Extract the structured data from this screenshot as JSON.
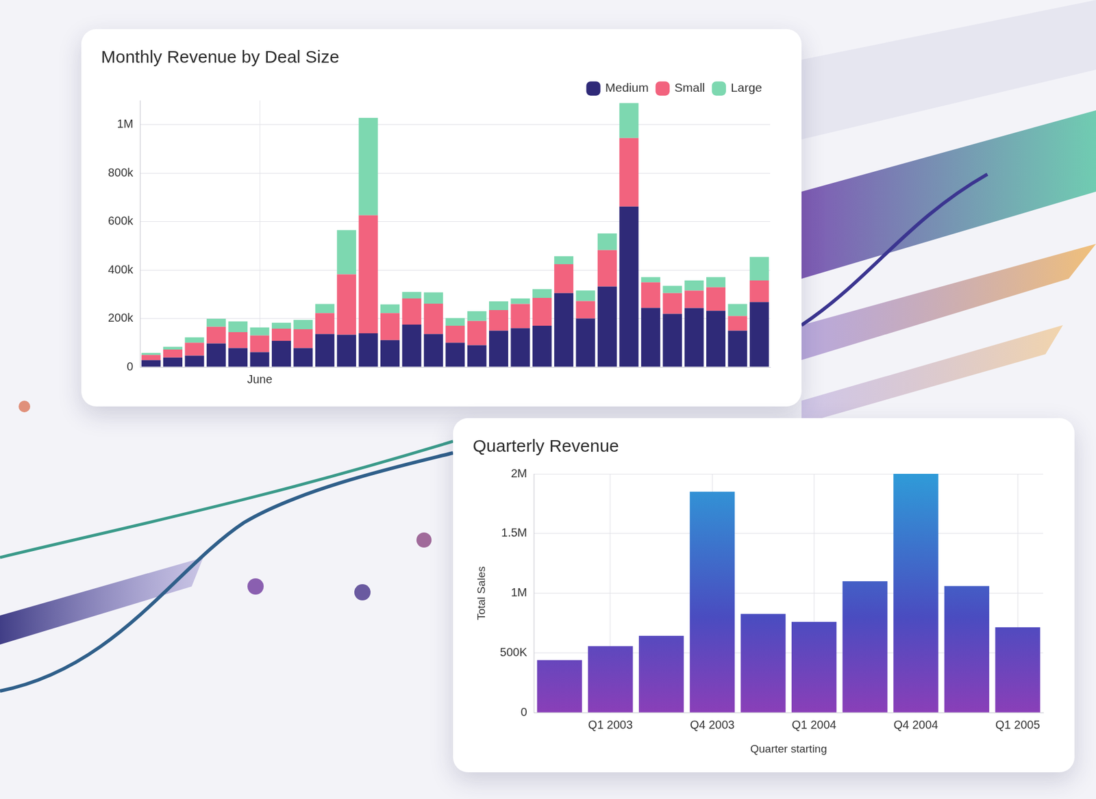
{
  "chart_data": [
    {
      "type": "bar",
      "title": "Monthly Revenue by Deal Size",
      "stacked": true,
      "legend": "top right",
      "grid": true,
      "categories": [
        null,
        null,
        null,
        null,
        null,
        "June",
        null,
        null,
        null,
        null,
        null,
        null,
        null,
        null,
        null,
        null,
        null,
        null,
        null,
        null,
        null,
        null,
        null,
        null,
        null,
        null,
        null,
        null,
        null
      ],
      "series": [
        {
          "name": "Medium",
          "color": "#2f2a78",
          "values": [
            28000,
            39000,
            47000,
            97000,
            78000,
            61000,
            108000,
            78000,
            136000,
            133000,
            139000,
            111000,
            175000,
            136000,
            100000,
            90000,
            150000,
            160000,
            170000,
            305000,
            200000,
            332000,
            662000,
            244000,
            219000,
            243000,
            232000,
            150000,
            268000
          ]
        },
        {
          "name": "Small",
          "color": "#f2637e",
          "values": [
            22000,
            33000,
            53000,
            69000,
            66000,
            69000,
            50000,
            78000,
            86000,
            249000,
            487000,
            111000,
            108000,
            125000,
            70000,
            100000,
            85000,
            100000,
            115000,
            119000,
            72000,
            150000,
            283000,
            105000,
            86000,
            72000,
            97000,
            60000,
            89000
          ]
        },
        {
          "name": "Large",
          "color": "#7dd8b0",
          "values": [
            8000,
            11000,
            22000,
            33000,
            44000,
            33000,
            25000,
            38000,
            38000,
            183000,
            402000,
            36000,
            27000,
            47000,
            32000,
            40000,
            36000,
            23000,
            36000,
            33000,
            44000,
            69000,
            144000,
            22000,
            30000,
            42000,
            42000,
            50000,
            97000
          ]
        }
      ],
      "ylim": [
        0,
        1100000
      ],
      "yticks": [
        0,
        {
          "value": 200000,
          "label": "200k"
        },
        {
          "value": 400000,
          "label": "400k"
        },
        {
          "value": 600000,
          "label": "600k"
        },
        {
          "value": 800000,
          "label": "800k"
        },
        {
          "value": 1000000,
          "label": "1M"
        }
      ]
    },
    {
      "type": "bar",
      "title": "Quarterly Revenue",
      "x_label": "Quarter starting",
      "y_label": "Total Sales",
      "grid": true,
      "color": "#2f9bd8",
      "categories": [
        null,
        "Q1 2003",
        null,
        "Q4 2003",
        null,
        "Q1 2004",
        null,
        "Q4 2004",
        null,
        "Q1 2005"
      ],
      "values": [
        440000,
        557000,
        643000,
        1850000,
        826000,
        760000,
        1100000,
        2000000,
        1060000,
        715000
      ],
      "ylim": [
        0,
        2000000
      ],
      "yticks": [
        0,
        {
          "value": 500000,
          "label": "500K"
        },
        {
          "value": 1000000,
          "label": "1M"
        },
        {
          "value": 1500000,
          "label": "1.5M"
        },
        {
          "value": 2000000,
          "label": "2M"
        }
      ]
    }
  ]
}
